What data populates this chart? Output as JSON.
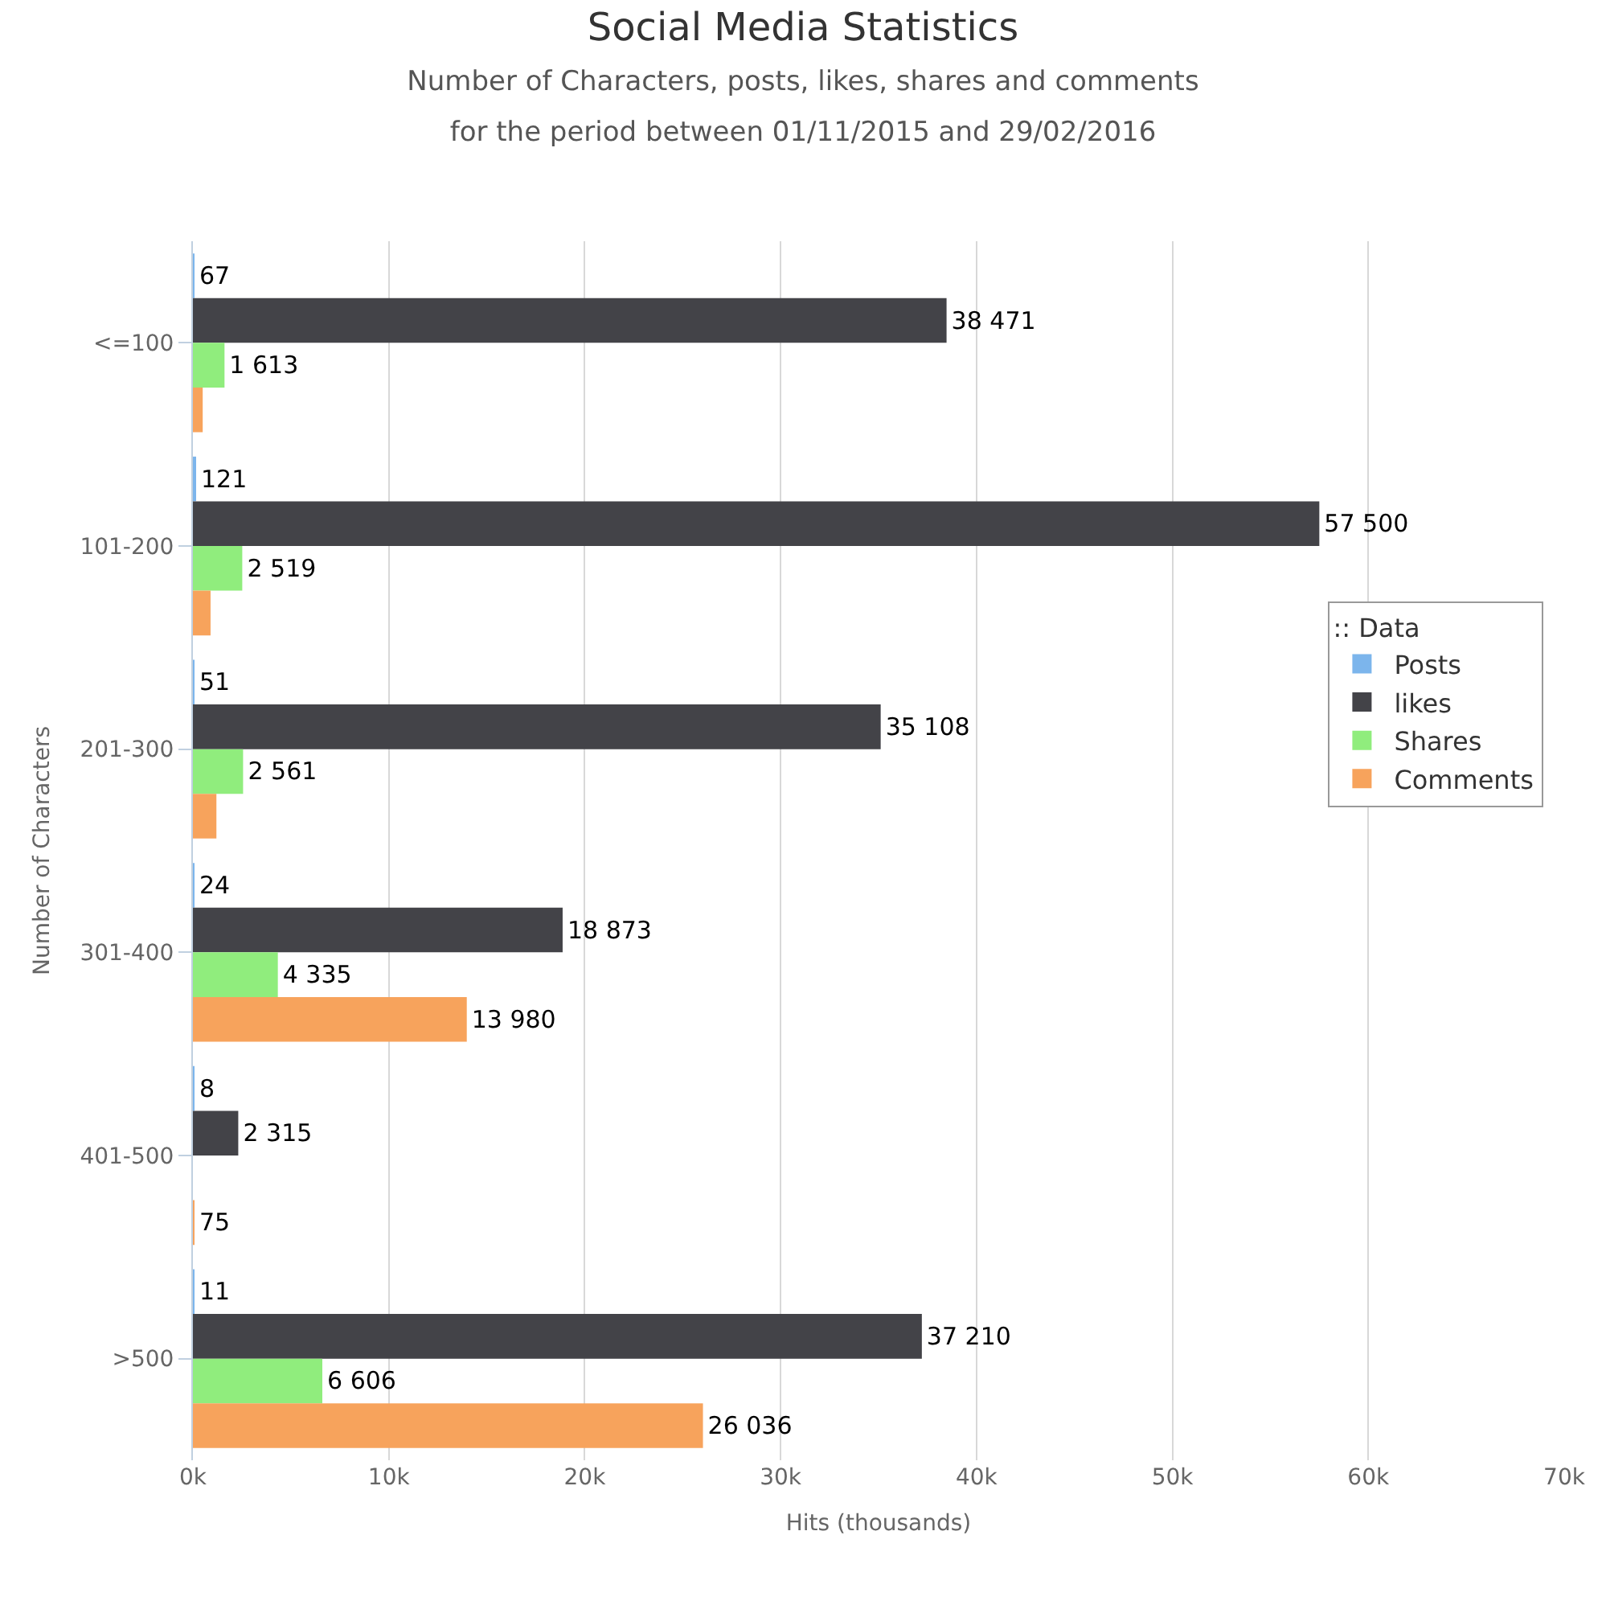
{
  "chart_data": {
    "type": "bar",
    "orientation": "horizontal",
    "title": "Social Media Statistics",
    "subtitle": "Number of Characters, posts, likes, shares and comments for the period between 01/11/2015 and 29/02/2016",
    "xlabel": "Hits (thousands)",
    "ylabel": "Number of Characters",
    "legend_title": ":: Data",
    "categories": [
      "<=100",
      "101-200",
      "201-300",
      "301-400",
      "401-500",
      ">500"
    ],
    "series": [
      {
        "name": "Posts",
        "color": "#7cb5ec",
        "values": [
          67,
          121,
          51,
          24,
          8,
          11
        ],
        "value_labels": [
          "67",
          "121",
          "51",
          "24",
          "8",
          "11"
        ]
      },
      {
        "name": "likes",
        "color": "#434348",
        "values": [
          38471,
          57500,
          35108,
          18873,
          2315,
          37210
        ],
        "value_labels": [
          "38 471",
          "57 500",
          "35 108",
          "18 873",
          "2 315",
          "37 210"
        ]
      },
      {
        "name": "Shares",
        "color": "#90ed7d",
        "values": [
          1613,
          2519,
          2561,
          4335,
          null,
          6606
        ],
        "value_labels": [
          "1 613",
          "2 519",
          "2 561",
          "4 335",
          null,
          "6 606"
        ]
      },
      {
        "name": "Comments",
        "color": "#f7a35c",
        "values": [
          500,
          900,
          1200,
          13980,
          75,
          26036
        ],
        "value_labels": [
          null,
          null,
          null,
          "13 980",
          "75",
          "26 036"
        ]
      }
    ],
    "xlim": [
      0,
      70000
    ],
    "xticks": [
      {
        "value": 0,
        "label": "0k"
      },
      {
        "value": 10000,
        "label": "10k"
      },
      {
        "value": 20000,
        "label": "20k"
      },
      {
        "value": 30000,
        "label": "30k"
      },
      {
        "value": 40000,
        "label": "40k"
      },
      {
        "value": 50000,
        "label": "50k"
      },
      {
        "value": 60000,
        "label": "60k"
      },
      {
        "value": 70000,
        "label": "70k"
      }
    ],
    "grid": "x",
    "legend": "right"
  }
}
